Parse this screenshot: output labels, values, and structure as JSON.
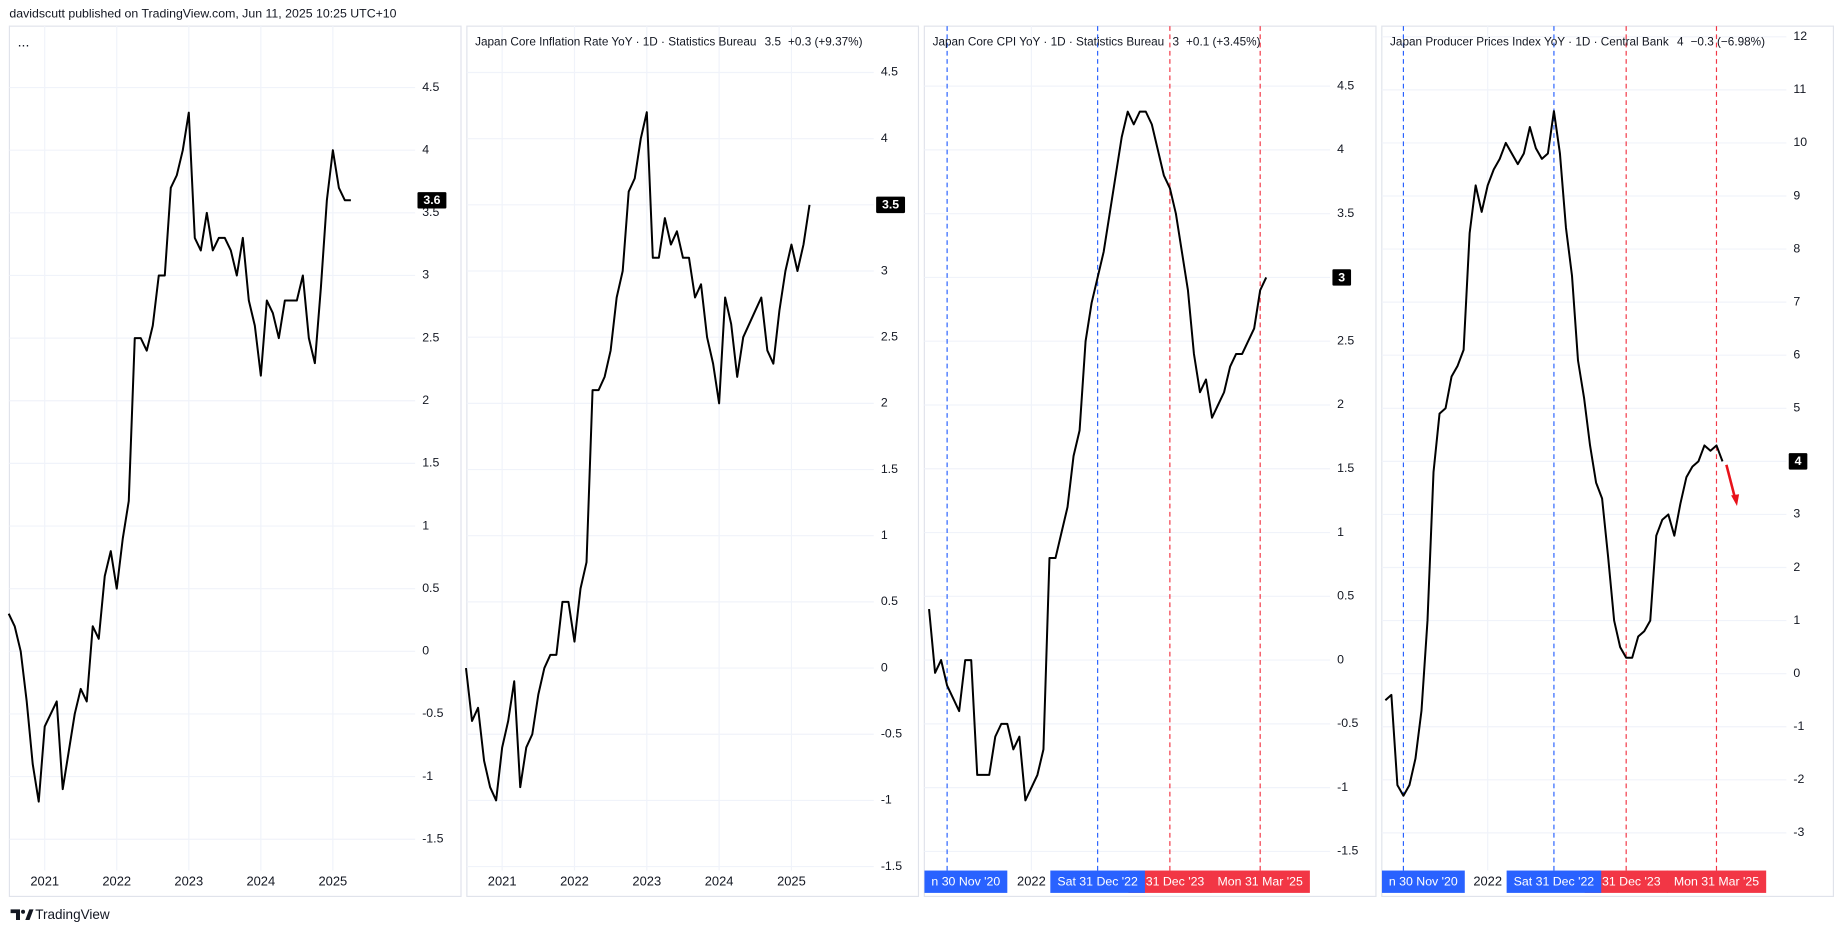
{
  "header": "davidscutt published on TradingView.com, Jun 11, 2025 10:25 UTC+10",
  "footer": "TradingView",
  "chart_data": [
    {
      "type": "line",
      "title": "...",
      "color": "#000000",
      "x": [
        "2020-07",
        "2020-08",
        "2020-09",
        "2020-10",
        "2020-11",
        "2020-12",
        "2021-01",
        "2021-02",
        "2021-03",
        "2021-04",
        "2021-05",
        "2021-06",
        "2021-07",
        "2021-08",
        "2021-09",
        "2021-10",
        "2021-11",
        "2021-12",
        "2022-01",
        "2022-02",
        "2022-03",
        "2022-04",
        "2022-05",
        "2022-06",
        "2022-07",
        "2022-08",
        "2022-09",
        "2022-10",
        "2022-11",
        "2022-12",
        "2023-01",
        "2023-02",
        "2023-03",
        "2023-04",
        "2023-05",
        "2023-06",
        "2023-07",
        "2023-08",
        "2023-09",
        "2023-10",
        "2023-11",
        "2023-12",
        "2024-01",
        "2024-02",
        "2024-03",
        "2024-04",
        "2024-05",
        "2024-06",
        "2024-07",
        "2024-08",
        "2024-09",
        "2024-10",
        "2024-11",
        "2024-12",
        "2025-01",
        "2025-02",
        "2025-03",
        "2025-04"
      ],
      "values": [
        0.3,
        0.2,
        0,
        -0.4,
        -0.9,
        -1.2,
        -0.6,
        -0.5,
        -0.4,
        -1.1,
        -0.8,
        -0.5,
        -0.3,
        -0.4,
        0.2,
        0.1,
        0.6,
        0.8,
        0.5,
        0.9,
        1.2,
        2.5,
        2.5,
        2.4,
        2.6,
        3.0,
        3.0,
        3.7,
        3.8,
        4.0,
        4.3,
        3.3,
        3.2,
        3.5,
        3.2,
        3.3,
        3.3,
        3.2,
        3.0,
        3.3,
        2.8,
        2.6,
        2.2,
        2.8,
        2.7,
        2.5,
        2.8,
        2.8,
        2.8,
        3.0,
        2.5,
        2.3,
        2.9,
        3.6,
        4.0,
        3.7,
        3.6,
        3.6
      ],
      "xlim": [
        "2020-07",
        "2026-02"
      ],
      "xticks": [
        {
          "value": "2021-01",
          "label": "2021"
        },
        {
          "value": "2022-01",
          "label": "2022"
        },
        {
          "value": "2023-01",
          "label": "2023"
        },
        {
          "value": "2024-01",
          "label": "2024"
        },
        {
          "value": "2025-01",
          "label": "2025"
        }
      ],
      "ylim": [
        -1.75,
        4.99
      ],
      "yticks": [
        -1.5,
        -1,
        -0.5,
        0,
        0.5,
        1,
        1.5,
        2,
        2.5,
        3,
        3.5,
        4,
        4.5
      ],
      "grid": true
    },
    {
      "type": "line",
      "title": "Japan Core Inflation Rate YoY · 1D · Statistics Bureau",
      "change": "+0.3 (+9.37%)",
      "color": "#000000",
      "x": [
        "2020-07",
        "2020-08",
        "2020-09",
        "2020-10",
        "2020-11",
        "2020-12",
        "2021-01",
        "2021-02",
        "2021-03",
        "2021-04",
        "2021-05",
        "2021-06",
        "2021-07",
        "2021-08",
        "2021-09",
        "2021-10",
        "2021-11",
        "2021-12",
        "2022-01",
        "2022-02",
        "2022-03",
        "2022-04",
        "2022-05",
        "2022-06",
        "2022-07",
        "2022-08",
        "2022-09",
        "2022-10",
        "2022-11",
        "2022-12",
        "2023-01",
        "2023-02",
        "2023-03",
        "2023-04",
        "2023-05",
        "2023-06",
        "2023-07",
        "2023-08",
        "2023-09",
        "2023-10",
        "2023-11",
        "2023-12",
        "2024-01",
        "2024-02",
        "2024-03",
        "2024-04",
        "2024-05",
        "2024-06",
        "2024-07",
        "2024-08",
        "2024-09",
        "2024-10",
        "2024-11",
        "2024-12",
        "2025-01",
        "2025-02",
        "2025-03",
        "2025-04"
      ],
      "values": [
        0,
        -0.4,
        -0.3,
        -0.7,
        -0.9,
        -1.0,
        -0.6,
        -0.4,
        -0.1,
        -0.9,
        -0.6,
        -0.5,
        -0.2,
        0,
        0.1,
        0.1,
        0.5,
        0.5,
        0.2,
        0.6,
        0.8,
        2.1,
        2.1,
        2.2,
        2.4,
        2.8,
        3.0,
        3.6,
        3.7,
        4.0,
        4.2,
        3.1,
        3.1,
        3.4,
        3.2,
        3.3,
        3.1,
        3.1,
        2.8,
        2.9,
        2.5,
        2.3,
        2.0,
        2.8,
        2.6,
        2.2,
        2.5,
        2.6,
        2.7,
        2.8,
        2.4,
        2.3,
        2.7,
        3.0,
        3.2,
        3.0,
        3.2,
        3.5
      ],
      "xlim": [
        "2020-07",
        "2026-02"
      ],
      "xticks": [
        {
          "value": "2021-01",
          "label": "2021"
        },
        {
          "value": "2022-01",
          "label": "2022"
        },
        {
          "value": "2023-01",
          "label": "2023"
        },
        {
          "value": "2024-01",
          "label": "2024"
        },
        {
          "value": "2025-01",
          "label": "2025"
        }
      ],
      "ylim": [
        -1.53,
        4.85
      ],
      "yticks": [
        -1.5,
        -1,
        -0.5,
        0,
        0.5,
        1,
        1.5,
        2,
        2.5,
        3,
        3.5,
        4,
        4.5
      ],
      "grid": true
    },
    {
      "type": "line",
      "title": "Japan Core CPI YoY · 1D · Statistics Bureau",
      "change": "+0.1 (+3.45%)",
      "color": "#000000",
      "x": [
        "2020-08",
        "2020-09",
        "2020-10",
        "2020-11",
        "2020-12",
        "2021-01",
        "2021-02",
        "2021-03",
        "2021-04",
        "2021-05",
        "2021-06",
        "2021-07",
        "2021-08",
        "2021-09",
        "2021-10",
        "2021-11",
        "2021-12",
        "2022-01",
        "2022-02",
        "2022-03",
        "2022-04",
        "2022-05",
        "2022-06",
        "2022-07",
        "2022-08",
        "2022-09",
        "2022-10",
        "2022-11",
        "2022-12",
        "2023-01",
        "2023-02",
        "2023-03",
        "2023-04",
        "2023-05",
        "2023-06",
        "2023-07",
        "2023-08",
        "2023-09",
        "2023-10",
        "2023-11",
        "2023-12",
        "2024-01",
        "2024-02",
        "2024-03",
        "2024-04",
        "2024-05",
        "2024-06",
        "2024-07",
        "2024-08",
        "2024-09",
        "2024-10",
        "2024-11",
        "2024-12",
        "2025-01",
        "2025-02",
        "2025-03",
        "2025-04"
      ],
      "values": [
        0.4,
        -0.1,
        0,
        -0.2,
        -0.3,
        -0.4,
        0,
        0,
        -0.9,
        -0.9,
        -0.9,
        -0.6,
        -0.5,
        -0.5,
        -0.7,
        -0.6,
        -1.1,
        -1.0,
        -0.9,
        -0.7,
        0.8,
        0.8,
        1.0,
        1.2,
        1.6,
        1.8,
        2.5,
        2.8,
        3.0,
        3.2,
        3.5,
        3.8,
        4.1,
        4.3,
        4.2,
        4.3,
        4.3,
        4.2,
        4.0,
        3.8,
        3.7,
        3.5,
        3.2,
        2.9,
        2.4,
        2.1,
        2.2,
        1.9,
        2.0,
        2.1,
        2.3,
        2.4,
        2.4,
        2.5,
        2.6,
        2.9,
        3.0
      ],
      "xlim": [
        "2020-08",
        "2026-03"
      ],
      "xticks": [
        {
          "value": "2022-01",
          "label": "2022"
        }
      ],
      "ylim": [
        -1.65,
        4.97
      ],
      "yticks": [
        -1.5,
        -1,
        -0.5,
        0,
        0.5,
        1,
        1.5,
        2,
        2.5,
        3,
        3.5,
        4,
        4.5
      ],
      "grid": true,
      "markers": [
        {
          "x": "2020-11",
          "label": "n 30 Nov '20",
          "color": "#2962ff"
        },
        {
          "x": "2022-12",
          "label": "Sat 31 Dec '22",
          "color": "#2962ff"
        },
        {
          "x": "2023-12",
          "label": "n 31 Dec '23",
          "color": "#f23645"
        },
        {
          "x": "2025-03",
          "label": "Mon 31 Mar '25",
          "color": "#f23645"
        }
      ]
    },
    {
      "type": "line",
      "title": "Japan Producer Prices Index YoY · 1D · Central Bank",
      "change": "−0.3 (−6.98%)",
      "color": "#000000",
      "x": [
        "2020-08",
        "2020-09",
        "2020-10",
        "2020-11",
        "2020-12",
        "2021-01",
        "2021-02",
        "2021-03",
        "2021-04",
        "2021-05",
        "2021-06",
        "2021-07",
        "2021-08",
        "2021-09",
        "2021-10",
        "2021-11",
        "2021-12",
        "2022-01",
        "2022-02",
        "2022-03",
        "2022-04",
        "2022-05",
        "2022-06",
        "2022-07",
        "2022-08",
        "2022-09",
        "2022-10",
        "2022-11",
        "2022-12",
        "2023-01",
        "2023-02",
        "2023-03",
        "2023-04",
        "2023-05",
        "2023-06",
        "2023-07",
        "2023-08",
        "2023-09",
        "2023-10",
        "2023-11",
        "2023-12",
        "2024-01",
        "2024-02",
        "2024-03",
        "2024-04",
        "2024-05",
        "2024-06",
        "2024-07",
        "2024-08",
        "2024-09",
        "2024-10",
        "2024-11",
        "2024-12",
        "2025-01",
        "2025-02",
        "2025-03",
        "2025-04"
      ],
      "values": [
        -0.5,
        -0.4,
        -2.1,
        -2.3,
        -2.1,
        -1.6,
        -0.7,
        1.0,
        3.8,
        4.9,
        5.0,
        5.6,
        5.8,
        6.1,
        8.3,
        9.2,
        8.7,
        9.2,
        9.5,
        9.7,
        10.0,
        9.8,
        9.6,
        9.8,
        10.3,
        9.9,
        9.7,
        9.8,
        10.6,
        9.8,
        8.4,
        7.5,
        5.9,
        5.2,
        4.3,
        3.6,
        3.3,
        2.2,
        1.0,
        0.5,
        0.3,
        0.3,
        0.7,
        0.8,
        1.0,
        2.6,
        2.9,
        3.0,
        2.6,
        3.2,
        3.7,
        3.9,
        4.0,
        4.3,
        4.2,
        4.3,
        4.0
      ],
      "xlim": [
        "2020-08",
        "2026-03"
      ],
      "xticks": [
        {
          "value": "2022-01",
          "label": "2022"
        }
      ],
      "ylim": [
        -3.71,
        12.2
      ],
      "yticks": [
        -3,
        -2,
        -1,
        0,
        1,
        2,
        3,
        4,
        5,
        6,
        7,
        8,
        9,
        10,
        11,
        12
      ],
      "grid": true,
      "markers": [
        {
          "x": "2020-11",
          "label": "n 30 Nov '20",
          "color": "#2962ff"
        },
        {
          "x": "2022-12",
          "label": "Sat 31 Dec '22",
          "color": "#2962ff"
        },
        {
          "x": "2023-12",
          "label": "n 31 Dec '23",
          "color": "#f23645"
        },
        {
          "x": "2025-03",
          "label": "Mon 31 Mar '25",
          "color": "#f23645"
        }
      ]
    }
  ]
}
